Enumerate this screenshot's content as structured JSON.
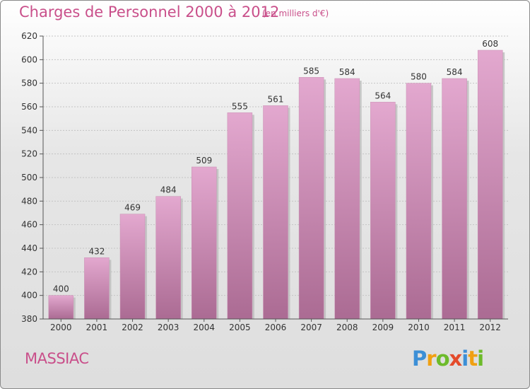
{
  "header": {
    "title": "Charges de Personnel 2000 à 2012",
    "unit": "(en milliers d'€)"
  },
  "footer": {
    "city": "MASSIAC",
    "logo_text": "Proxiti"
  },
  "colors": {
    "accent": "#c94f8a",
    "bar_top": "#e3a8cf",
    "bar_bottom": "#ab6b93"
  },
  "chart_data": {
    "type": "bar",
    "categories": [
      "2000",
      "2001",
      "2002",
      "2003",
      "2004",
      "2005",
      "2006",
      "2007",
      "2008",
      "2009",
      "2010",
      "2011",
      "2012"
    ],
    "values": [
      400,
      432,
      469,
      484,
      509,
      555,
      561,
      585,
      584,
      564,
      580,
      584,
      608
    ],
    "ylim": [
      380,
      620
    ],
    "yticks": [
      380,
      400,
      420,
      440,
      460,
      480,
      500,
      520,
      540,
      560,
      580,
      600,
      620
    ],
    "grid": true
  }
}
